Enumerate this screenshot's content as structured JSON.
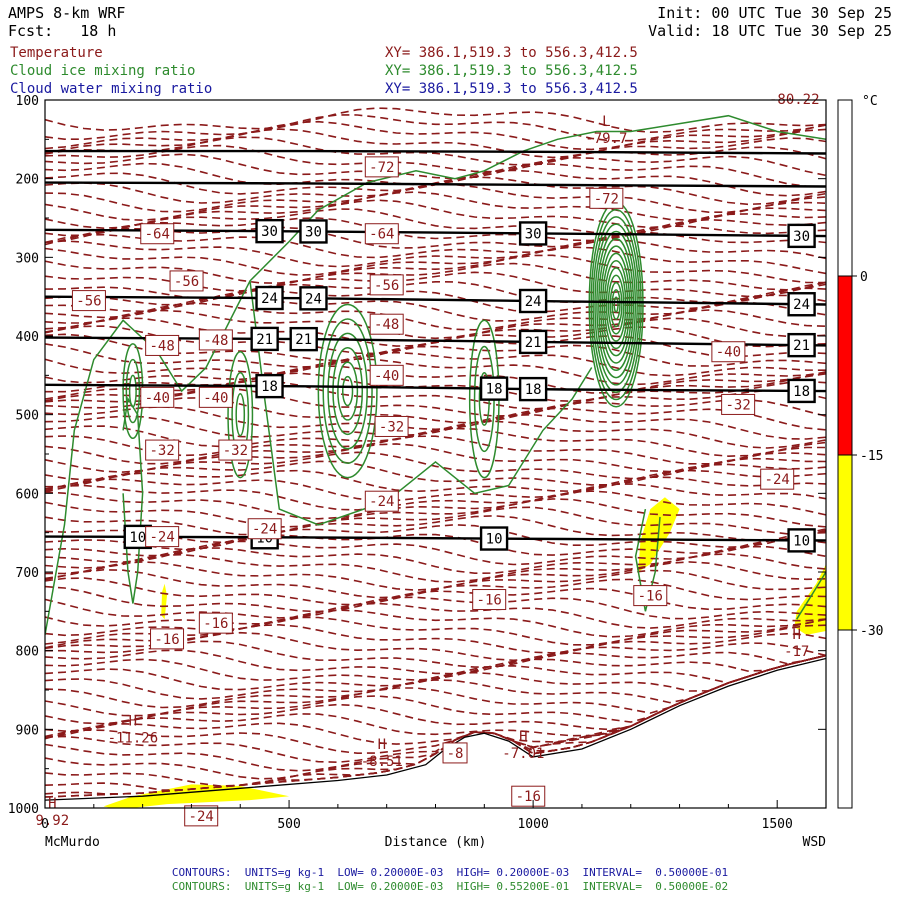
{
  "header": {
    "model": "AMPS 8-km WRF",
    "forecast": "Fcst:   18 h",
    "init": "Init: 00 UTC Tue 30 Sep 25",
    "valid": "Valid: 18 UTC Tue 30 Sep 25"
  },
  "fields": [
    {
      "name": "Temperature",
      "xy": "XY= 386.1,519.3 to 556.3,412.5",
      "color": "#8b1a1a"
    },
    {
      "name": "Cloud ice mixing ratio",
      "xy": "XY= 386.1,519.3 to 556.3,412.5",
      "color": "#2e8b2e"
    },
    {
      "name": "Cloud water mixing ratio",
      "xy": "XY= 386.1,519.3 to 556.3,412.5",
      "color": "#1a1aa0"
    }
  ],
  "footer": {
    "line1": "CONTOURS:  UNITS=g kg-1  LOW= 0.20000E-03  HIGH= 0.20000E-03  INTERVAL=  0.50000E-01",
    "line2": "CONTOURS:  UNITS=g kg-1  LOW= 0.20000E-03  HIGH= 0.55200E-01  INTERVAL=  0.50000E-02",
    "color1": "#1a1aa0",
    "color2": "#2e8b2e"
  },
  "chart_data": {
    "type": "contour-cross-section",
    "xlabel": "Distance (km)",
    "ylabel": "",
    "xlim": [
      0,
      1600
    ],
    "ylim": [
      1000,
      100
    ],
    "xticks": [
      0,
      500,
      1000,
      1500
    ],
    "yticks": [
      100,
      200,
      300,
      400,
      500,
      600,
      700,
      800,
      900,
      1000
    ],
    "x_start_label": "McMurdo",
    "x_end_label": "WSD",
    "temperature_labels": [
      {
        "text": "-72",
        "x": 690,
        "p": 185
      },
      {
        "text": "-72",
        "x": 1150,
        "p": 225
      },
      {
        "text": "-64",
        "x": 230,
        "p": 270
      },
      {
        "text": "-64",
        "x": 690,
        "p": 270
      },
      {
        "text": "-56",
        "x": 290,
        "p": 330
      },
      {
        "text": "-56",
        "x": 700,
        "p": 335
      },
      {
        "text": "-56",
        "x": 90,
        "p": 355
      },
      {
        "text": "-48",
        "x": 350,
        "p": 405
      },
      {
        "text": "-48",
        "x": 700,
        "p": 385
      },
      {
        "text": "-48",
        "x": 240,
        "p": 412
      },
      {
        "text": "-40",
        "x": 230,
        "p": 478
      },
      {
        "text": "-40",
        "x": 350,
        "p": 478
      },
      {
        "text": "-40",
        "x": 700,
        "p": 450
      },
      {
        "text": "-40",
        "x": 1400,
        "p": 420
      },
      {
        "text": "-32",
        "x": 240,
        "p": 545
      },
      {
        "text": "-32",
        "x": 390,
        "p": 545
      },
      {
        "text": "-32",
        "x": 710,
        "p": 515
      },
      {
        "text": "-32",
        "x": 1420,
        "p": 487
      },
      {
        "text": "-24",
        "x": 690,
        "p": 610
      },
      {
        "text": "-24",
        "x": 1500,
        "p": 582
      },
      {
        "text": "-24",
        "x": 240,
        "p": 655
      },
      {
        "text": "-24",
        "x": 450,
        "p": 645
      },
      {
        "text": "-16",
        "x": 910,
        "p": 735
      },
      {
        "text": "-16",
        "x": 1240,
        "p": 730
      },
      {
        "text": "-16",
        "x": 350,
        "p": 765
      },
      {
        "text": "-16",
        "x": 250,
        "p": 785
      },
      {
        "text": "-8",
        "x": 840,
        "p": 930
      },
      {
        "text": "-16",
        "x": 990,
        "p": 985
      },
      {
        "text": "-24",
        "x": 320,
        "p": 1010
      }
    ],
    "extrema": [
      {
        "kind": "L",
        "value": "-79.7",
        "x": 1150,
        "p": 138
      },
      {
        "kind": "H",
        "value": "-11.26",
        "x": 180,
        "p": 900
      },
      {
        "kind": "H",
        "value": "-8.51",
        "x": 690,
        "p": 930
      },
      {
        "kind": "H",
        "value": "-7.01",
        "x": 980,
        "p": 920
      },
      {
        "kind": "H",
        "value": "9.92",
        "x": 15,
        "p": 1005
      },
      {
        "kind": "H",
        "value": "-17",
        "x": 1540,
        "p": 790
      }
    ],
    "corner_value": "-80.22",
    "height_lines": [
      {
        "label": "",
        "p": [
          165,
          165,
          166,
          168
        ]
      },
      {
        "label": "",
        "p": [
          205,
          206,
          208,
          210
        ]
      },
      {
        "label": "30",
        "p": [
          265,
          267,
          270,
          273
        ],
        "boxes": [
          460,
          550,
          1000,
          1550
        ]
      },
      {
        "label": "24",
        "p": [
          350,
          352,
          356,
          360
        ],
        "boxes": [
          460,
          550,
          1000,
          1550
        ]
      },
      {
        "label": "21",
        "p": [
          402,
          404,
          408,
          412
        ],
        "boxes": [
          450,
          530,
          1000,
          1550
        ]
      },
      {
        "label": "18",
        "p": [
          462,
          464,
          468,
          470
        ],
        "boxes": [
          460,
          920,
          1000,
          1550
        ]
      },
      {
        "label": "10",
        "p": [
          655,
          656,
          658,
          660
        ],
        "boxes": [
          190,
          450,
          920,
          1550
        ]
      }
    ],
    "colorbar": {
      "unit": "°C",
      "ticks": [
        "0",
        "-15",
        "-30"
      ],
      "bands": [
        {
          "from": "0",
          "to": "-15",
          "color": "#ff0000"
        },
        {
          "from": "-15",
          "to": "-30",
          "color": "#ffff00"
        }
      ]
    }
  }
}
